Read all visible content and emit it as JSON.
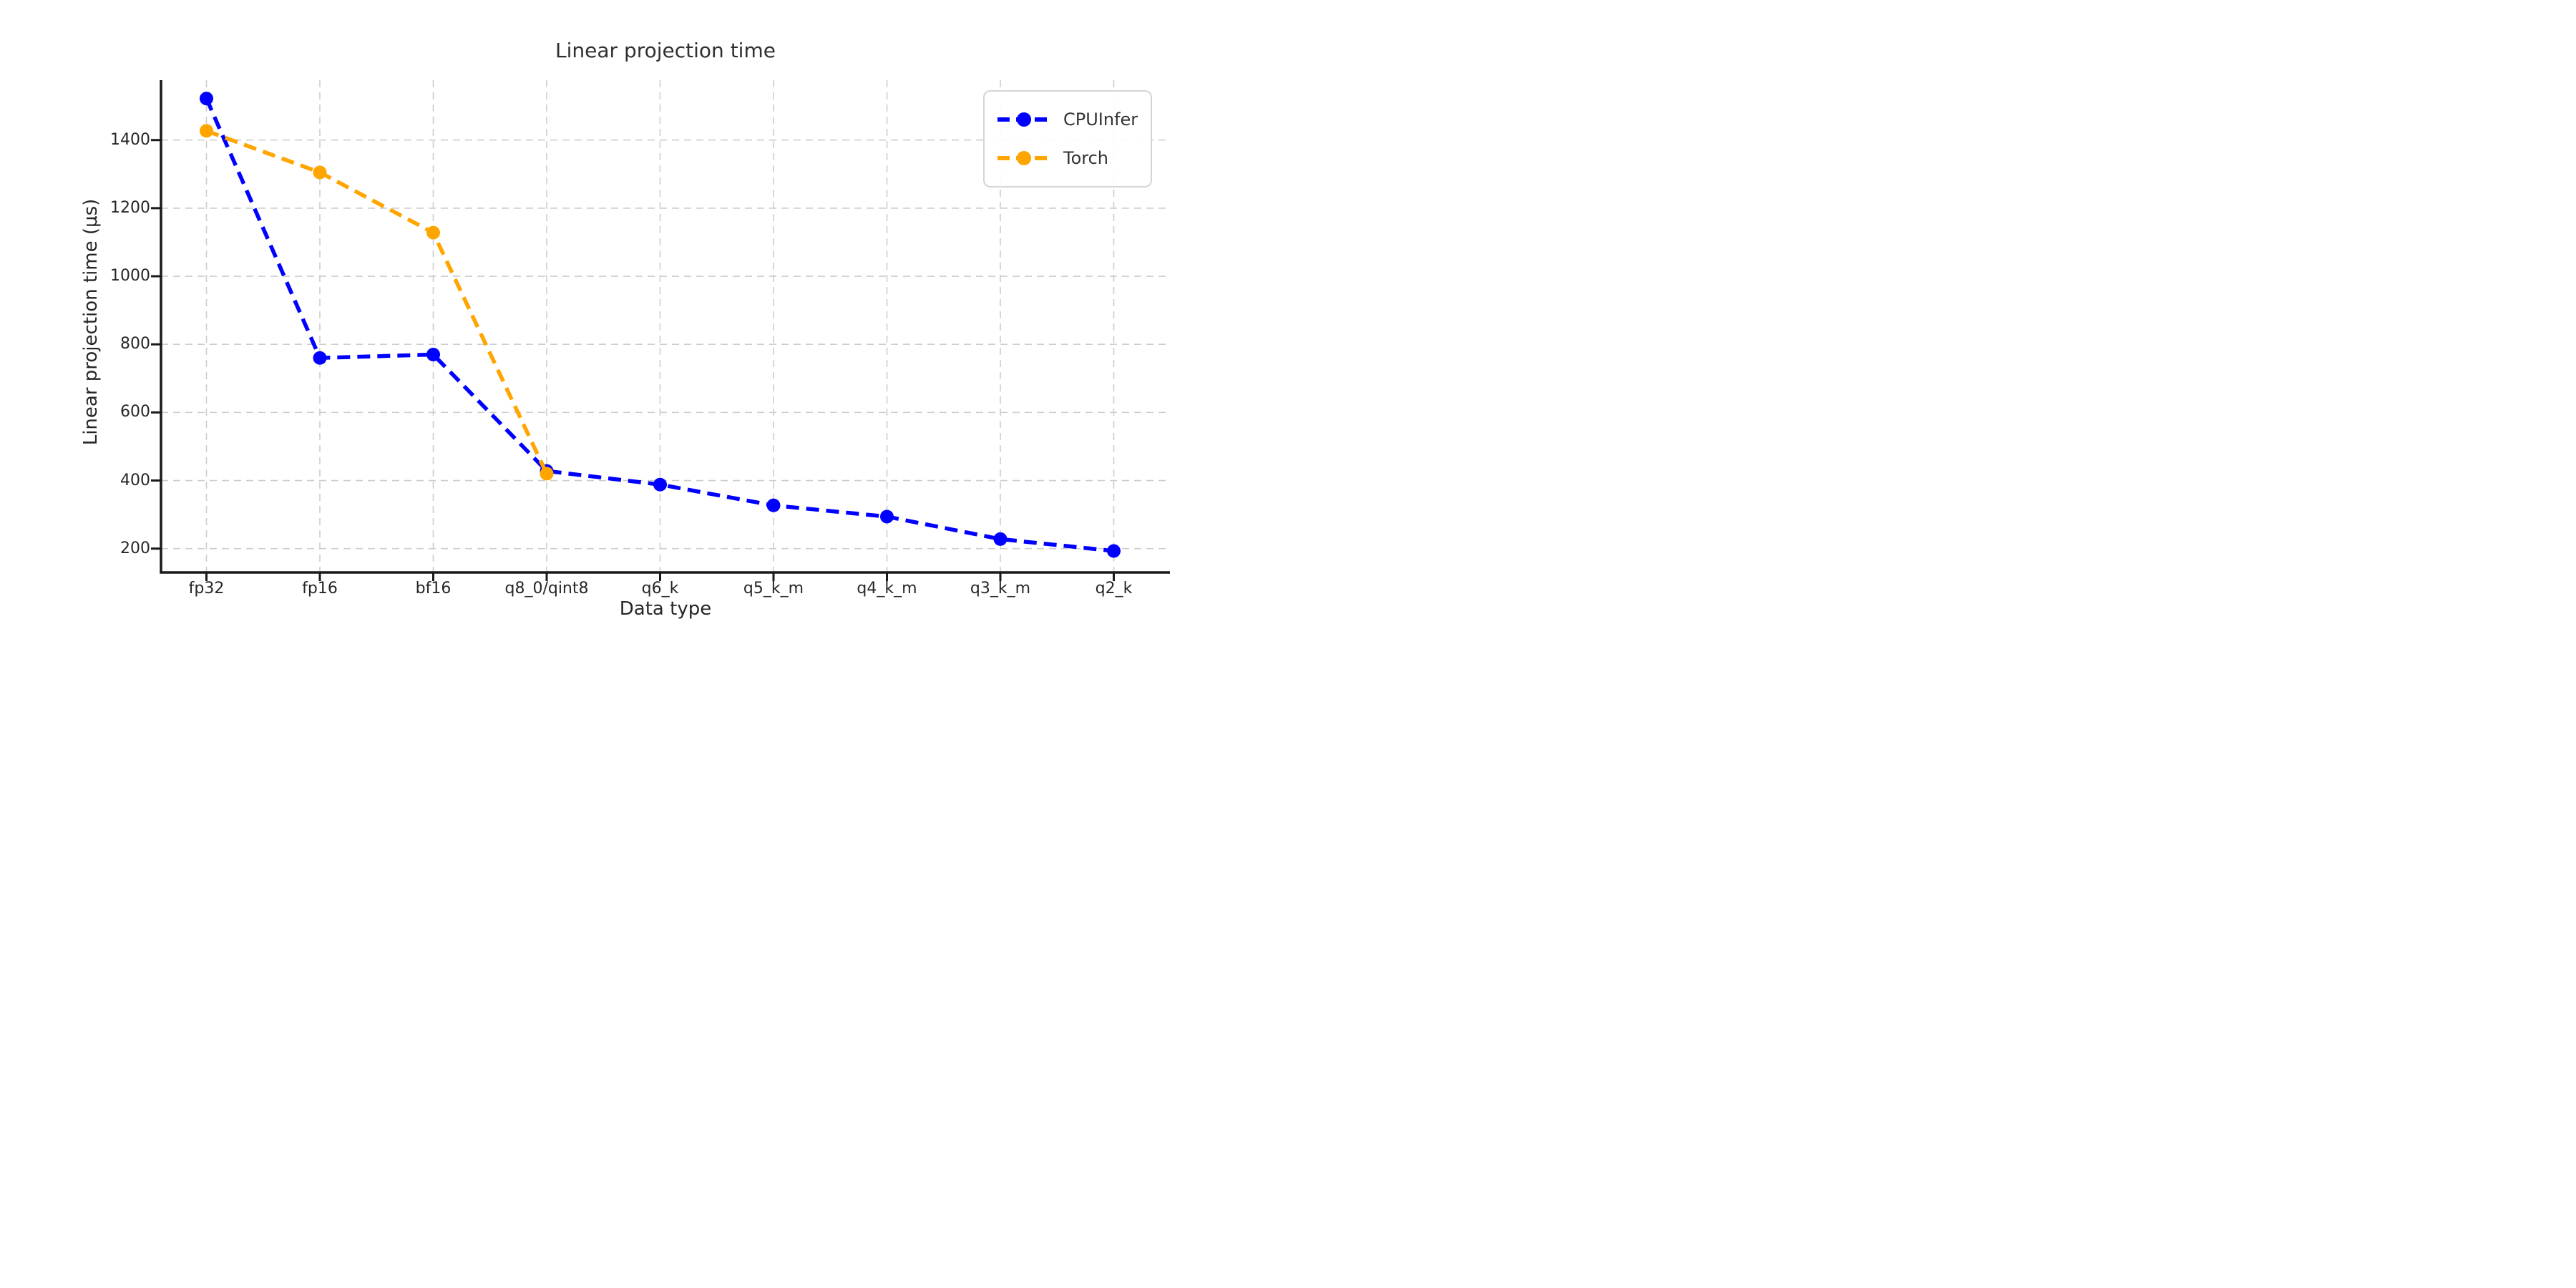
{
  "chart_data": {
    "type": "line",
    "title": "Linear projection time",
    "xlabel": "Data type",
    "ylabel": "Linear projection time (μs)",
    "categories": [
      "fp32",
      "fp16",
      "bf16",
      "q8_0/qint8",
      "q6_k",
      "q5_k_m",
      "q4_k_m",
      "q3_k_m",
      "q2_k"
    ],
    "series": [
      {
        "name": "CPUInfer",
        "color": "#0000ff",
        "values": [
          1522,
          760,
          770,
          428,
          388,
          327,
          294,
          228,
          193
        ]
      },
      {
        "name": "Torch",
        "color": "#ffa500",
        "values": [
          1427,
          1305,
          1128,
          420,
          null,
          null,
          null,
          null,
          null
        ]
      }
    ],
    "yticks": [
      200,
      400,
      600,
      800,
      1000,
      1200,
      1400
    ],
    "ylim": [
      130,
      1576
    ],
    "grid": true,
    "gridline_color": "#cdcdcd",
    "spine_color": "#1a1a1a",
    "line_style": "dashed",
    "marker": "circle",
    "legend_position": "upper right"
  }
}
